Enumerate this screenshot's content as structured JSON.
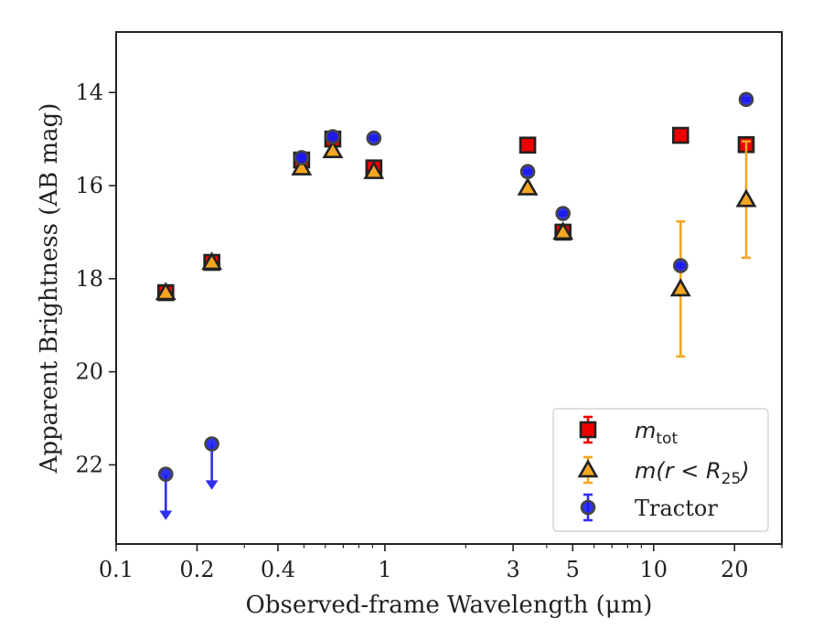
{
  "chart_data": {
    "type": "scatter",
    "title": "",
    "xlabel": "Observed-frame Wavelength (μm)",
    "ylabel": "Apparent Brightness (AB mag)",
    "xscale": "log",
    "xlim": [
      0.1,
      30
    ],
    "ylim": [
      23.7,
      12.7
    ],
    "y_inverted": true,
    "x_ticks": [
      0.1,
      0.2,
      0.4,
      1,
      3,
      5,
      10,
      20
    ],
    "x_tick_labels": [
      "0.1",
      "0.2",
      "0.4",
      "1",
      "3",
      "5",
      "10",
      "20"
    ],
    "y_ticks": [
      14,
      16,
      18,
      20,
      22
    ],
    "y_tick_labels": [
      "14",
      "16",
      "18",
      "20",
      "22"
    ],
    "grid": false,
    "legend_position": "bottom-right",
    "series": [
      {
        "name": "m_tot",
        "legend_label_parts": {
          "main": "m",
          "sub": "tot"
        },
        "marker": "square",
        "color": "#ee0000",
        "edge_color": "#222222",
        "points": [
          {
            "x": 0.153,
            "y": 18.3,
            "err": 0.05
          },
          {
            "x": 0.227,
            "y": 17.65,
            "err": 0.05
          },
          {
            "x": 0.49,
            "y": 15.45,
            "err": 0.05
          },
          {
            "x": 0.64,
            "y": 15.0,
            "err": 0.05
          },
          {
            "x": 0.91,
            "y": 15.62,
            "err": 0.05
          },
          {
            "x": 3.4,
            "y": 15.13,
            "err": 0.05
          },
          {
            "x": 4.6,
            "y": 17.0,
            "err": 0.05
          },
          {
            "x": 12.6,
            "y": 14.92,
            "err": 0.05
          },
          {
            "x": 22.1,
            "y": 15.12,
            "err": 0.05
          }
        ]
      },
      {
        "name": "m(r < R25)",
        "legend_label_parts": {
          "main": "m(r < R",
          "sub": "25",
          "end": ")"
        },
        "marker": "triangle",
        "color": "#f5a623",
        "edge_color": "#222222",
        "points": [
          {
            "x": 0.153,
            "y": 18.3,
            "err": 0.05
          },
          {
            "x": 0.227,
            "y": 17.65,
            "err": 0.05
          },
          {
            "x": 0.49,
            "y": 15.62,
            "err": 0.05
          },
          {
            "x": 0.64,
            "y": 15.25,
            "err": 0.05
          },
          {
            "x": 0.91,
            "y": 15.7,
            "err": 0.05
          },
          {
            "x": 3.4,
            "y": 16.05,
            "err": 0.05
          },
          {
            "x": 4.6,
            "y": 17.0,
            "err": 0.05
          },
          {
            "x": 12.6,
            "y": 18.22,
            "err": 1.45
          },
          {
            "x": 22.1,
            "y": 16.3,
            "err": 1.25
          }
        ]
      },
      {
        "name": "Tractor",
        "marker": "circle",
        "color": "#1a1aee",
        "edge_color": "#444444",
        "points": [
          {
            "x": 0.153,
            "y": 22.2,
            "upper_limit": true
          },
          {
            "x": 0.227,
            "y": 21.55,
            "upper_limit": true
          },
          {
            "x": 0.49,
            "y": 15.4,
            "err": 0.03
          },
          {
            "x": 0.64,
            "y": 14.95,
            "err": 0.03
          },
          {
            "x": 0.91,
            "y": 14.98,
            "err": 0.03
          },
          {
            "x": 3.4,
            "y": 15.7,
            "err": 0.03
          },
          {
            "x": 4.6,
            "y": 16.6,
            "err": 0.03
          },
          {
            "x": 12.6,
            "y": 17.72,
            "err": 0.03
          },
          {
            "x": 22.1,
            "y": 14.15,
            "err": 0.03
          }
        ]
      }
    ]
  }
}
